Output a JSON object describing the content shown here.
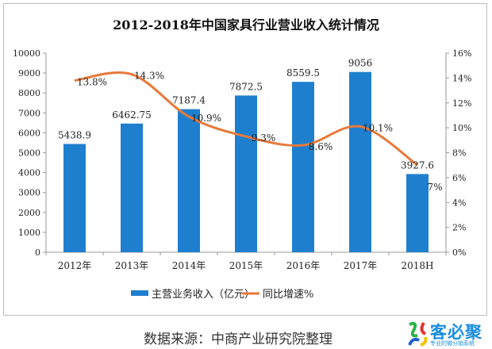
{
  "chart_data": {
    "type": "bar+line",
    "title": "2012-2018年中国家具行业营业收入统计情况",
    "categories": [
      "2012年",
      "2013年",
      "2014年",
      "2015年",
      "2016年",
      "2017年",
      "2018H"
    ],
    "series": [
      {
        "name": "主营业务收入（亿元）",
        "type": "bar",
        "axis": "left",
        "color": "#1f7fcf",
        "values": [
          5438.9,
          6462.75,
          7187.4,
          7872.5,
          8559.5,
          9056,
          3927.6
        ],
        "labels": [
          "5438.9",
          "6462.75",
          "7187.4",
          "7872.5",
          "8559.5",
          "9056",
          "3927.6"
        ]
      },
      {
        "name": "同比增速%",
        "type": "line",
        "axis": "right",
        "color": "#e8793a",
        "values": [
          13.8,
          14.3,
          10.9,
          9.3,
          8.6,
          10.1,
          7
        ],
        "labels": [
          "13.8%",
          "14.3%",
          "10.9%",
          "9.3%",
          "8.6%",
          "10.1%",
          "7%"
        ]
      }
    ],
    "y_left": {
      "range": [
        0,
        10000
      ],
      "ticks": [
        "0",
        "1000",
        "2000",
        "3000",
        "4000",
        "5000",
        "6000",
        "7000",
        "8000",
        "9000",
        "10000"
      ]
    },
    "y_right": {
      "range": [
        0,
        16
      ],
      "ticks": [
        "0%",
        "2%",
        "4%",
        "6%",
        "8%",
        "10%",
        "12%",
        "14%",
        "16%"
      ]
    },
    "grid": false,
    "legend": "bottom"
  },
  "source": "数据来源：中商产业研究院整理",
  "logo": {
    "name": "客必聚",
    "tagline": "专业的微分销系统"
  }
}
